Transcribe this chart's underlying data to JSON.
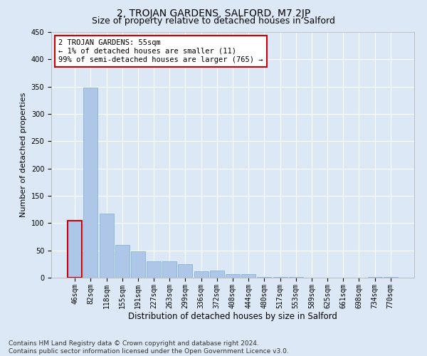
{
  "title": "2, TROJAN GARDENS, SALFORD, M7 2JP",
  "subtitle": "Size of property relative to detached houses in Salford",
  "xlabel": "Distribution of detached houses by size in Salford",
  "ylabel": "Number of detached properties",
  "categories": [
    "46sqm",
    "82sqm",
    "118sqm",
    "155sqm",
    "191sqm",
    "227sqm",
    "263sqm",
    "299sqm",
    "336sqm",
    "372sqm",
    "408sqm",
    "444sqm",
    "480sqm",
    "517sqm",
    "553sqm",
    "589sqm",
    "625sqm",
    "661sqm",
    "698sqm",
    "734sqm",
    "770sqm"
  ],
  "values": [
    105,
    348,
    118,
    60,
    48,
    30,
    30,
    25,
    12,
    13,
    6,
    7,
    1,
    1,
    1,
    0,
    0,
    0,
    0,
    1,
    1
  ],
  "bar_color": "#aec6e8",
  "bar_edge_color": "#7aafd4",
  "highlight_bar_index": 0,
  "highlight_color": "#cc0000",
  "ylim": [
    0,
    450
  ],
  "yticks": [
    0,
    50,
    100,
    150,
    200,
    250,
    300,
    350,
    400,
    450
  ],
  "annotation_text": "2 TROJAN GARDENS: 55sqm\n← 1% of detached houses are smaller (11)\n99% of semi-detached houses are larger (765) →",
  "annotation_box_color": "#ffffff",
  "annotation_box_edge_color": "#cc0000",
  "footer_text": "Contains HM Land Registry data © Crown copyright and database right 2024.\nContains public sector information licensed under the Open Government Licence v3.0.",
  "background_color": "#dce8f5",
  "axes_background_color": "#dce8f5",
  "grid_color": "#ffffff",
  "title_fontsize": 10,
  "subtitle_fontsize": 9,
  "ylabel_fontsize": 8,
  "xlabel_fontsize": 8.5,
  "tick_fontsize": 7,
  "annotation_fontsize": 7.5,
  "footer_fontsize": 6.5
}
